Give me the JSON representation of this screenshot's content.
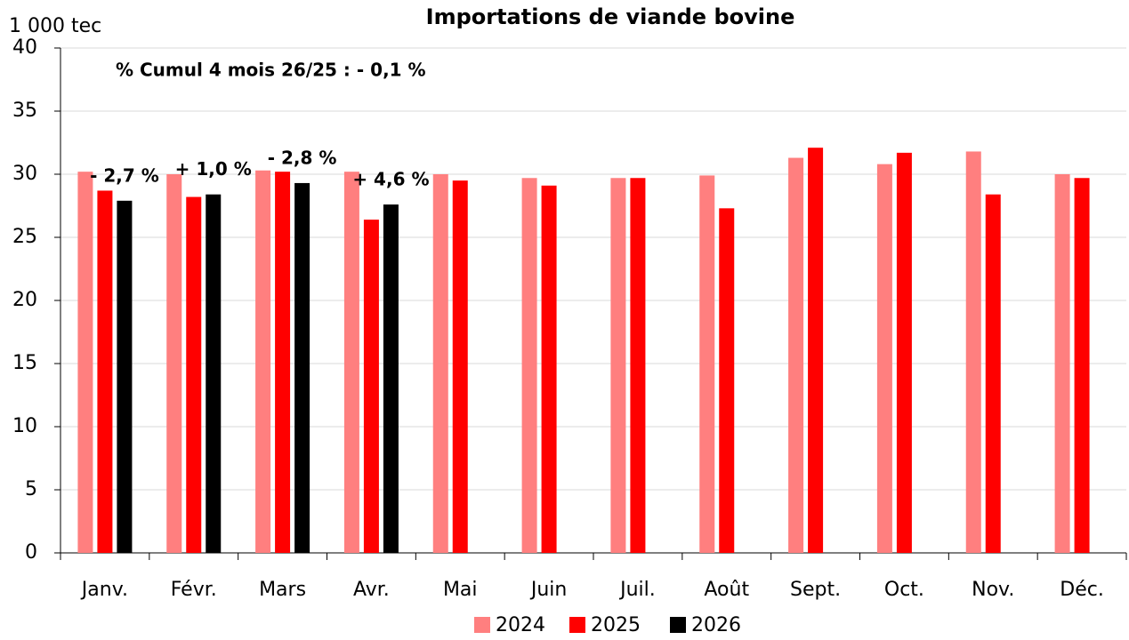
{
  "chart_data": {
    "type": "bar",
    "title": "Importations de viande bovine",
    "subtitle": "% Cumul 4 mois 26/25 : - 0,1 %",
    "y_label": "1 000 tec",
    "categories": [
      "Janv.",
      "Févr.",
      "Mars",
      "Avr.",
      "Mai",
      "Juin",
      "Juil.",
      "Août",
      "Sept.",
      "Oct.",
      "Nov.",
      "Déc."
    ],
    "series": [
      {
        "name": "2024",
        "color": "#ff7f7f",
        "values": [
          30.2,
          30.0,
          30.3,
          30.2,
          30.0,
          29.7,
          29.7,
          29.9,
          31.3,
          30.8,
          31.8,
          30.0
        ]
      },
      {
        "name": "2025",
        "color": "#ff0000",
        "values": [
          28.7,
          28.2,
          30.2,
          26.4,
          29.5,
          29.1,
          29.7,
          27.3,
          32.1,
          31.7,
          28.4,
          29.7
        ]
      },
      {
        "name": "2026",
        "color": "#000000",
        "values": [
          27.9,
          28.4,
          29.3,
          27.6,
          null,
          null,
          null,
          null,
          null,
          null,
          null,
          null
        ]
      }
    ],
    "annotations": [
      "- 2,7 %",
      "+ 1,0 %",
      "- 2,8 %",
      "+ 4,6 %"
    ],
    "ylim": [
      0,
      40
    ],
    "yticks": [
      0,
      5,
      10,
      15,
      20,
      25,
      30,
      35,
      40
    ],
    "grid": true
  }
}
